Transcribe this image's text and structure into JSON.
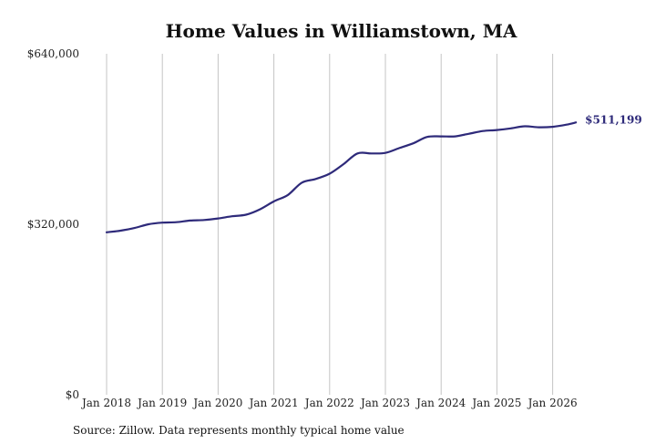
{
  "chart_data": {
    "type": "line",
    "title": "Home Values in Williamstown, MA",
    "xlabel": "",
    "ylabel": "",
    "source": "Source: Zillow. Data represents monthly typical home value",
    "ylim": [
      0,
      640000
    ],
    "y_ticks": [
      {
        "value": 0,
        "label": "$0"
      },
      {
        "value": 320000,
        "label": "$320,000"
      },
      {
        "value": 640000,
        "label": "$640,000"
      }
    ],
    "x_ticks": [
      {
        "value": "2018-01",
        "label": "Jan 2018"
      },
      {
        "value": "2019-01",
        "label": "Jan 2019"
      },
      {
        "value": "2020-01",
        "label": "Jan 2020"
      },
      {
        "value": "2021-01",
        "label": "Jan 2021"
      },
      {
        "value": "2022-01",
        "label": "Jan 2022"
      },
      {
        "value": "2023-01",
        "label": "Jan 2023"
      },
      {
        "value": "2024-01",
        "label": "Jan 2024"
      },
      {
        "value": "2025-01",
        "label": "Jan 2025"
      },
      {
        "value": "2026-01",
        "label": "Jan 2026"
      }
    ],
    "grid": "vertical",
    "line_color": "#2e2a7a",
    "end_label": "$511,199",
    "series": [
      {
        "x": [
          "2018-01",
          "2018-04",
          "2018-07",
          "2018-10",
          "2019-01",
          "2019-04",
          "2019-07",
          "2019-10",
          "2020-01",
          "2020-04",
          "2020-07",
          "2020-10",
          "2021-01",
          "2021-04",
          "2021-07",
          "2021-10",
          "2022-01",
          "2022-04",
          "2022-07",
          "2022-10",
          "2023-01",
          "2023-04",
          "2023-07",
          "2023-10",
          "2024-01",
          "2024-04",
          "2024-07",
          "2024-10",
          "2025-01",
          "2025-04",
          "2025-07",
          "2025-10",
          "2026-01",
          "2026-04",
          "2026-06"
        ],
        "values": [
          305000,
          308000,
          313000,
          320000,
          323000,
          324000,
          327000,
          328000,
          331000,
          335000,
          338000,
          348000,
          363000,
          375000,
          398000,
          405000,
          415000,
          433000,
          453000,
          453000,
          454000,
          463000,
          472000,
          484000,
          485000,
          485000,
          490000,
          495000,
          497000,
          500000,
          504000,
          502000,
          503000,
          507000,
          511199
        ]
      }
    ]
  }
}
